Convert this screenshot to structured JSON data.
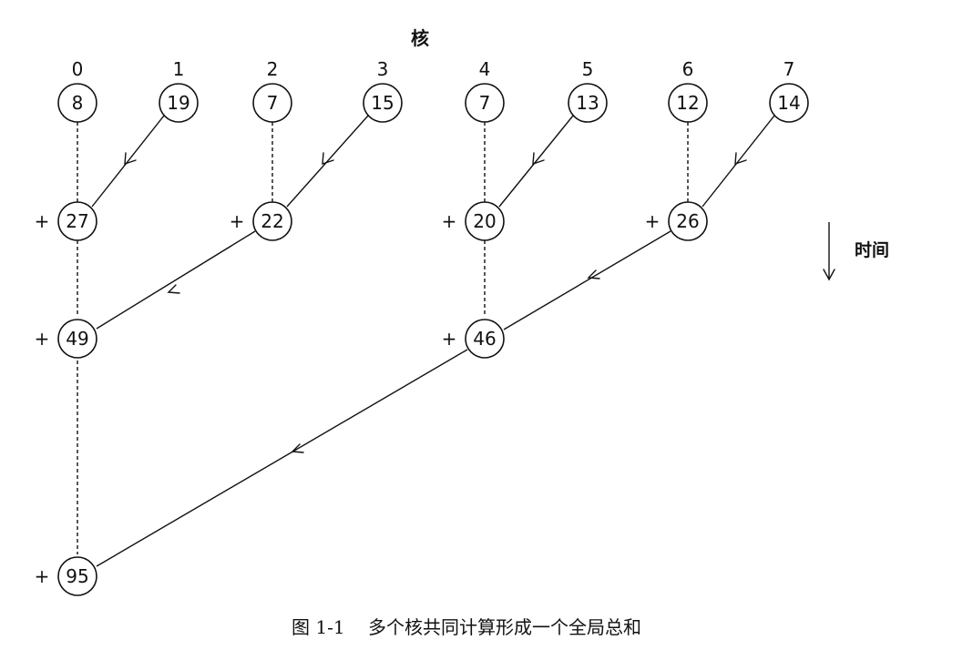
{
  "header": {
    "title": "核"
  },
  "cores": [
    "0",
    "1",
    "2",
    "3",
    "4",
    "5",
    "6",
    "7"
  ],
  "initial_values": [
    "8",
    "19",
    "7",
    "15",
    "7",
    "13",
    "12",
    "14"
  ],
  "level1_sums": [
    "27",
    "22",
    "20",
    "26"
  ],
  "level2_sums": [
    "49",
    "46"
  ],
  "final_sum": "95",
  "plus_sign": "+",
  "time_axis": {
    "label": "时间"
  },
  "caption": "图 1-1    多个核共同计算形成一个全局总和"
}
